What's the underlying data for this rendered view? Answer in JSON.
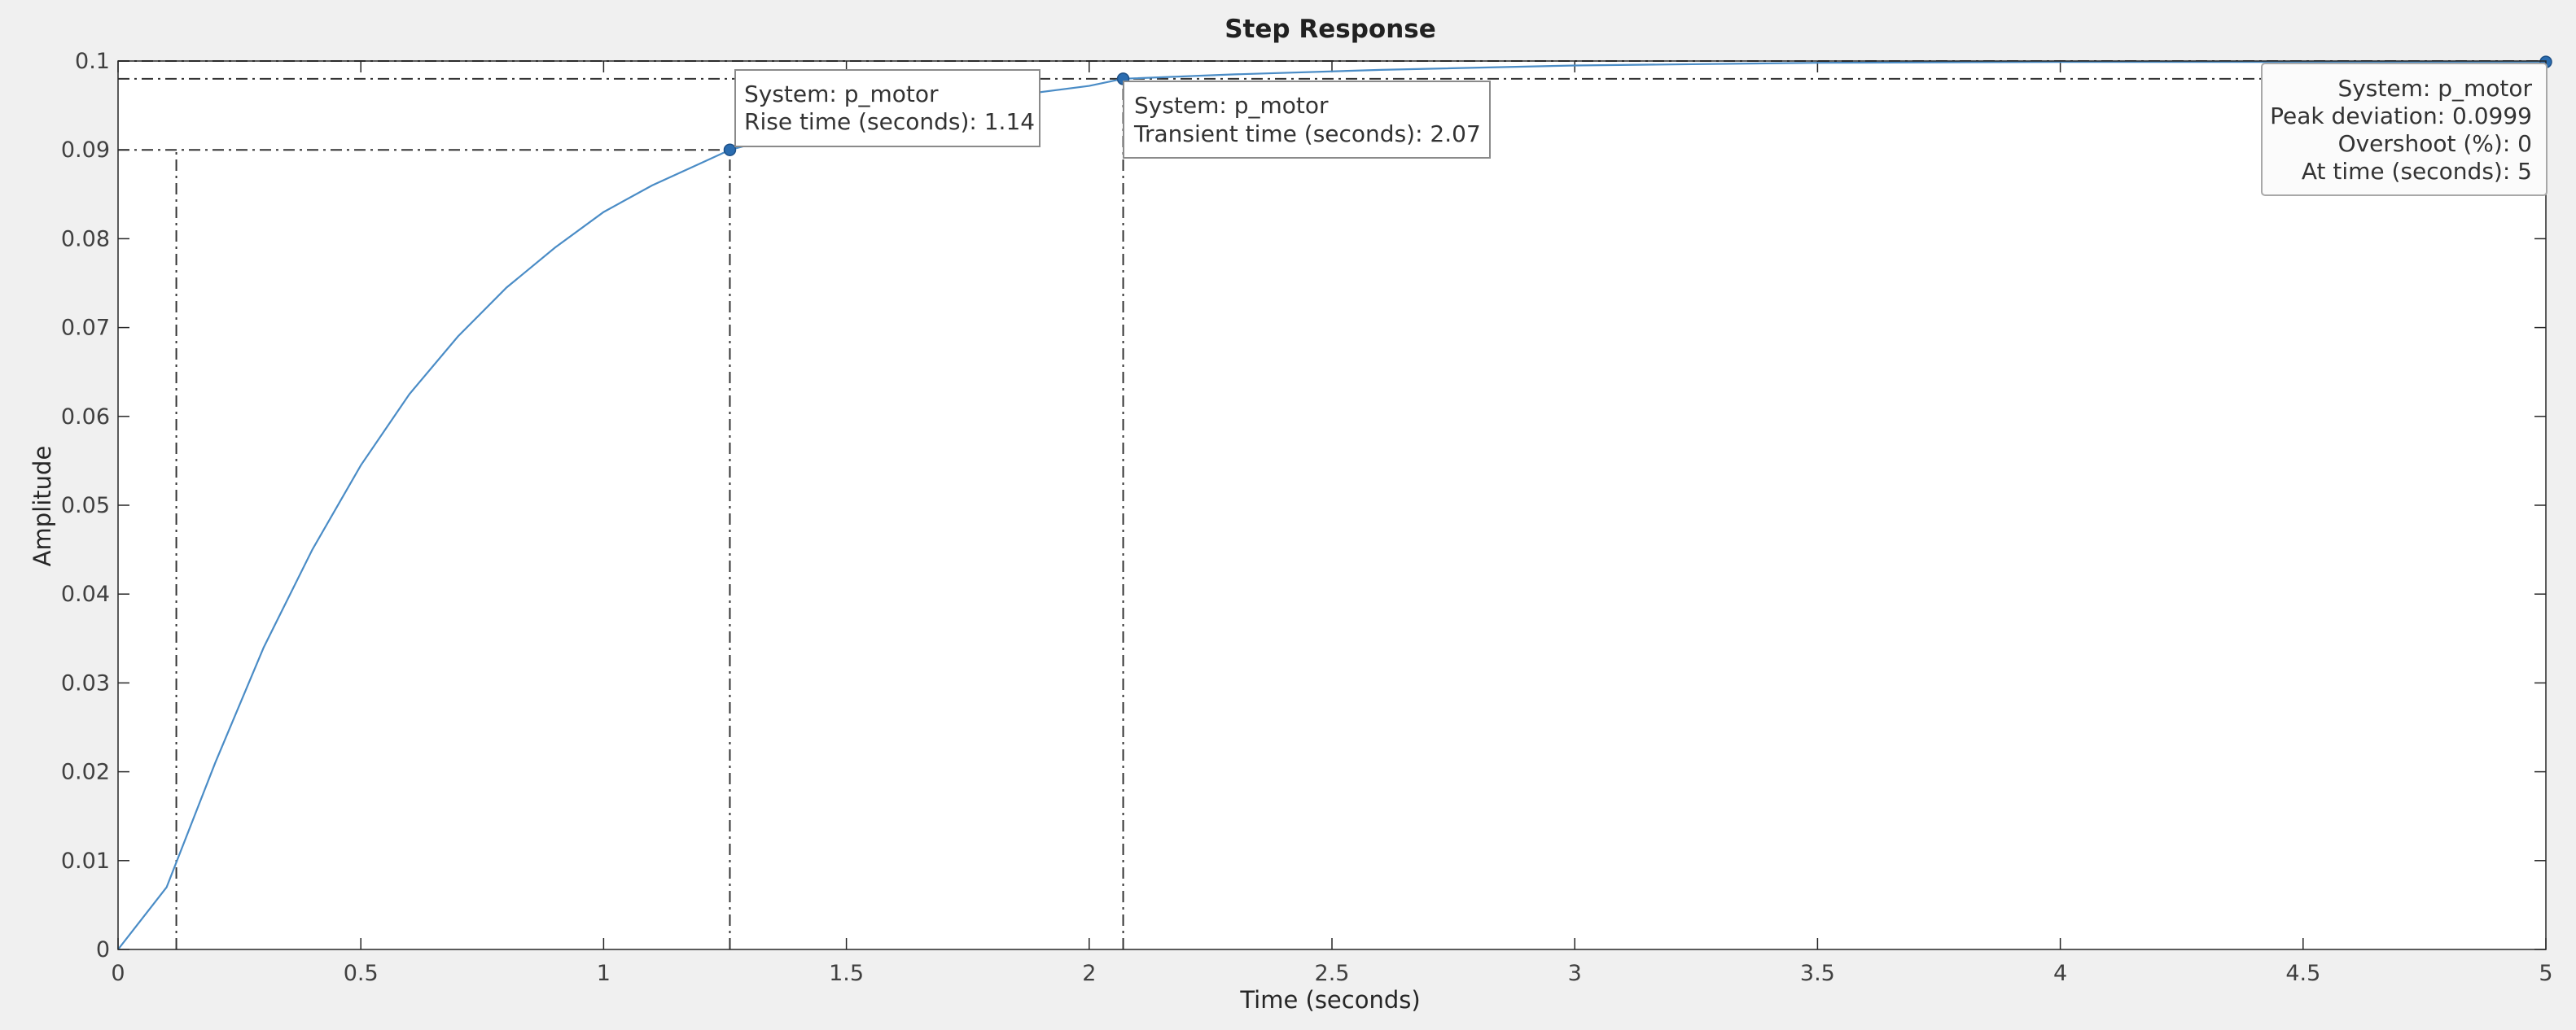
{
  "chart_data": {
    "type": "line",
    "title": "Step Response",
    "xlabel": "Time (seconds)",
    "ylabel": "Amplitude",
    "xlim": [
      0,
      5
    ],
    "ylim": [
      0,
      0.1
    ],
    "x_ticks": [
      0,
      0.5,
      1,
      1.5,
      2,
      2.5,
      3,
      3.5,
      4,
      4.5,
      5
    ],
    "x_tick_labels": [
      "0",
      "0.5",
      "1",
      "1.5",
      "2",
      "2.5",
      "3",
      "3.5",
      "4",
      "4.5",
      "5"
    ],
    "y_ticks": [
      0,
      0.01,
      0.02,
      0.03,
      0.04,
      0.05,
      0.06,
      0.07,
      0.08,
      0.09,
      0.1
    ],
    "y_tick_labels": [
      "0",
      "0.01",
      "0.02",
      "0.03",
      "0.04",
      "0.05",
      "0.06",
      "0.07",
      "0.08",
      "0.09",
      "0.1"
    ],
    "grid": false,
    "series": [
      {
        "color": "#4a8cc6",
        "x": [
          0,
          0.1,
          0.2,
          0.3,
          0.4,
          0.5,
          0.6,
          0.7,
          0.8,
          0.9,
          1.0,
          1.1,
          1.2,
          1.26,
          1.4,
          1.6,
          1.8,
          2.0,
          2.07,
          2.3,
          2.6,
          3.0,
          3.5,
          4.0,
          4.5,
          5.0
        ],
        "y": [
          0,
          0.007,
          0.021,
          0.034,
          0.045,
          0.0545,
          0.0625,
          0.069,
          0.0745,
          0.079,
          0.083,
          0.086,
          0.0885,
          0.09,
          0.092,
          0.094,
          0.0958,
          0.0972,
          0.098,
          0.0985,
          0.099,
          0.0995,
          0.0998,
          0.0999,
          0.0999,
          0.0999
        ]
      }
    ],
    "reference_lines": {
      "y_levels": [
        0.1,
        0.098,
        0.09
      ],
      "x_levels": [
        0.12,
        1.26,
        2.07
      ]
    },
    "markers": [
      {
        "x": 1.26,
        "y": 0.09
      },
      {
        "x": 2.07,
        "y": 0.098
      },
      {
        "x": 5.0,
        "y": 0.0999
      }
    ],
    "datatips": [
      {
        "id": "rise",
        "line1": "System: p_motor",
        "line2": "Rise time (seconds): 1.14"
      },
      {
        "id": "transient",
        "line1": "System: p_motor",
        "line2": "Transient time (seconds): 2.07"
      },
      {
        "id": "peak",
        "line1": "System: p_motor",
        "line2": "Peak deviation: 0.0999",
        "line3": "Overshoot (%): 0",
        "line4": "At time (seconds): 5"
      }
    ]
  }
}
